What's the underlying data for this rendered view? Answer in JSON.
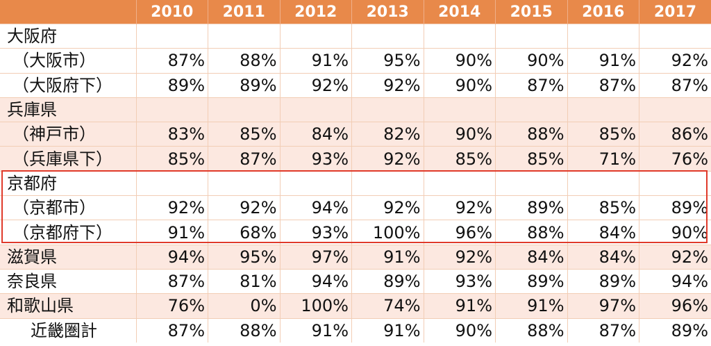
{
  "colors": {
    "header_bg": "#e8894a",
    "band_light": "#ffffff",
    "band_pink": "#fce8e0",
    "highlight_border": "#e03a2a"
  },
  "header": {
    "years": [
      "2010",
      "2011",
      "2012",
      "2013",
      "2014",
      "2015",
      "2016",
      "2017"
    ]
  },
  "rows": [
    {
      "label": "大阪府",
      "values": [
        "",
        "",
        "",
        "",
        "",
        "",
        "",
        ""
      ]
    },
    {
      "label": "（大阪市）",
      "values": [
        "87%",
        "88%",
        "91%",
        "95%",
        "90%",
        "90%",
        "91%",
        "92%"
      ]
    },
    {
      "label": "（大阪府下）",
      "values": [
        "89%",
        "89%",
        "92%",
        "92%",
        "90%",
        "87%",
        "87%",
        "87%"
      ]
    },
    {
      "label": "兵庫県",
      "values": [
        "",
        "",
        "",
        "",
        "",
        "",
        "",
        ""
      ]
    },
    {
      "label": "（神戸市）",
      "values": [
        "83%",
        "85%",
        "84%",
        "82%",
        "90%",
        "88%",
        "85%",
        "86%"
      ]
    },
    {
      "label": "（兵庫県下）",
      "values": [
        "85%",
        "87%",
        "93%",
        "92%",
        "85%",
        "85%",
        "71%",
        "76%"
      ]
    },
    {
      "label": "京都府",
      "values": [
        "",
        "",
        "",
        "",
        "",
        "",
        "",
        ""
      ]
    },
    {
      "label": "（京都市）",
      "values": [
        "92%",
        "92%",
        "94%",
        "92%",
        "92%",
        "89%",
        "85%",
        "89%"
      ]
    },
    {
      "label": "（京都府下）",
      "values": [
        "91%",
        "68%",
        "93%",
        "100%",
        "96%",
        "88%",
        "84%",
        "90%"
      ]
    },
    {
      "label": "滋賀県",
      "values": [
        "94%",
        "95%",
        "97%",
        "91%",
        "92%",
        "84%",
        "84%",
        "92%"
      ]
    },
    {
      "label": "奈良県",
      "values": [
        "87%",
        "81%",
        "94%",
        "89%",
        "93%",
        "89%",
        "89%",
        "94%"
      ]
    },
    {
      "label": "和歌山県",
      "values": [
        "76%",
        "0%",
        "100%",
        "74%",
        "91%",
        "91%",
        "97%",
        "96%"
      ]
    },
    {
      "label": "近畿圏計",
      "values": [
        "87%",
        "88%",
        "91%",
        "91%",
        "90%",
        "88%",
        "87%",
        "89%"
      ]
    }
  ]
}
